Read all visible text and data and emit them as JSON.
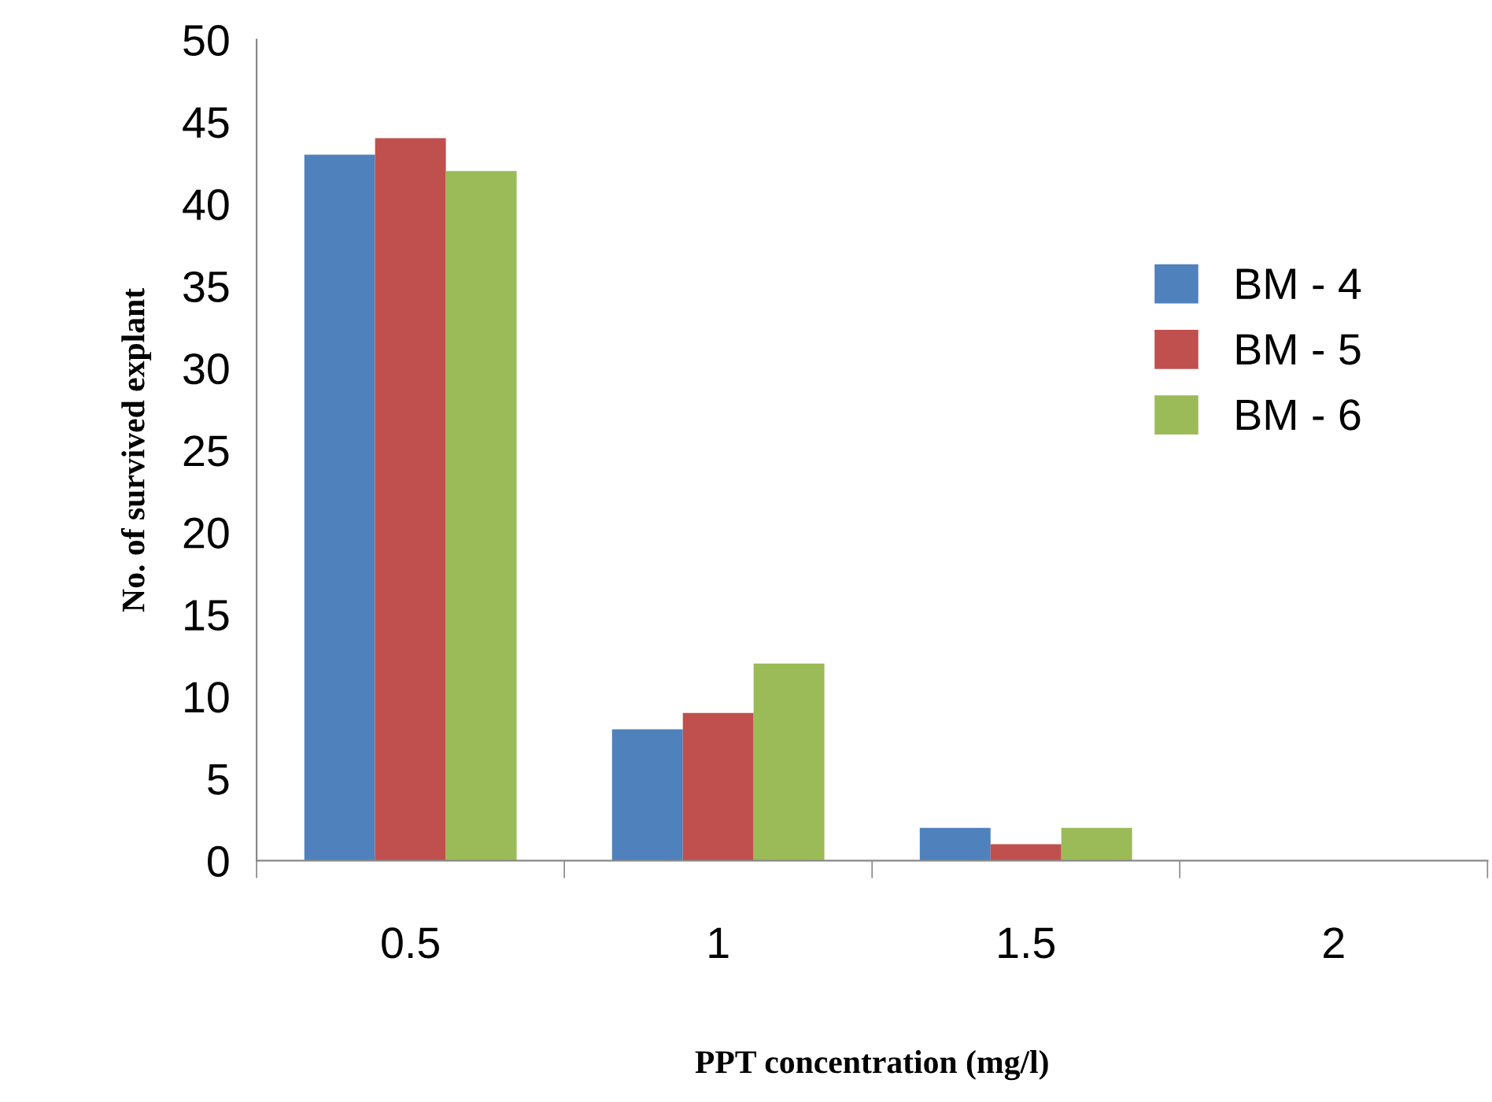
{
  "chart_data": {
    "type": "bar",
    "xlabel": "PPT concentration (mg/l)",
    "ylabel": "No. of survived explant",
    "categories": [
      "0.5",
      "1",
      "1.5",
      "2"
    ],
    "series": [
      {
        "name": "BM - 4",
        "color": "#4f81bd",
        "values": [
          43,
          8,
          2,
          0
        ]
      },
      {
        "name": "BM - 5",
        "color": "#c0504d",
        "values": [
          44,
          9,
          1,
          0
        ]
      },
      {
        "name": "BM - 6",
        "color": "#9bbb59",
        "values": [
          42,
          12,
          2,
          0
        ]
      }
    ],
    "ylim": [
      0,
      50
    ],
    "yticks": [
      0,
      5,
      10,
      15,
      20,
      25,
      30,
      35,
      40,
      45,
      50
    ],
    "grid": false,
    "legend": "right"
  }
}
